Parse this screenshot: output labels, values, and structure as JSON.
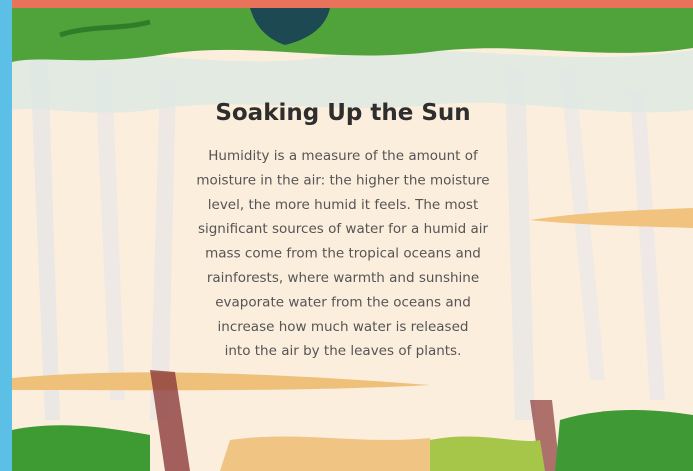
{
  "panel": {
    "title": "Soaking Up the Sun",
    "paragraph_lines": [
      "Humidity is a measure of the amount of",
      "moisture in the air: the higher the moisture",
      "level, the more humid it feels. The most",
      "significant sources of water for a humid air",
      "mass come from the tropical oceans and",
      "rainforests, where warmth and sunshine",
      "evaporate water from the oceans and",
      "increase how much water is released",
      "into the air by the leaves of plants."
    ]
  }
}
